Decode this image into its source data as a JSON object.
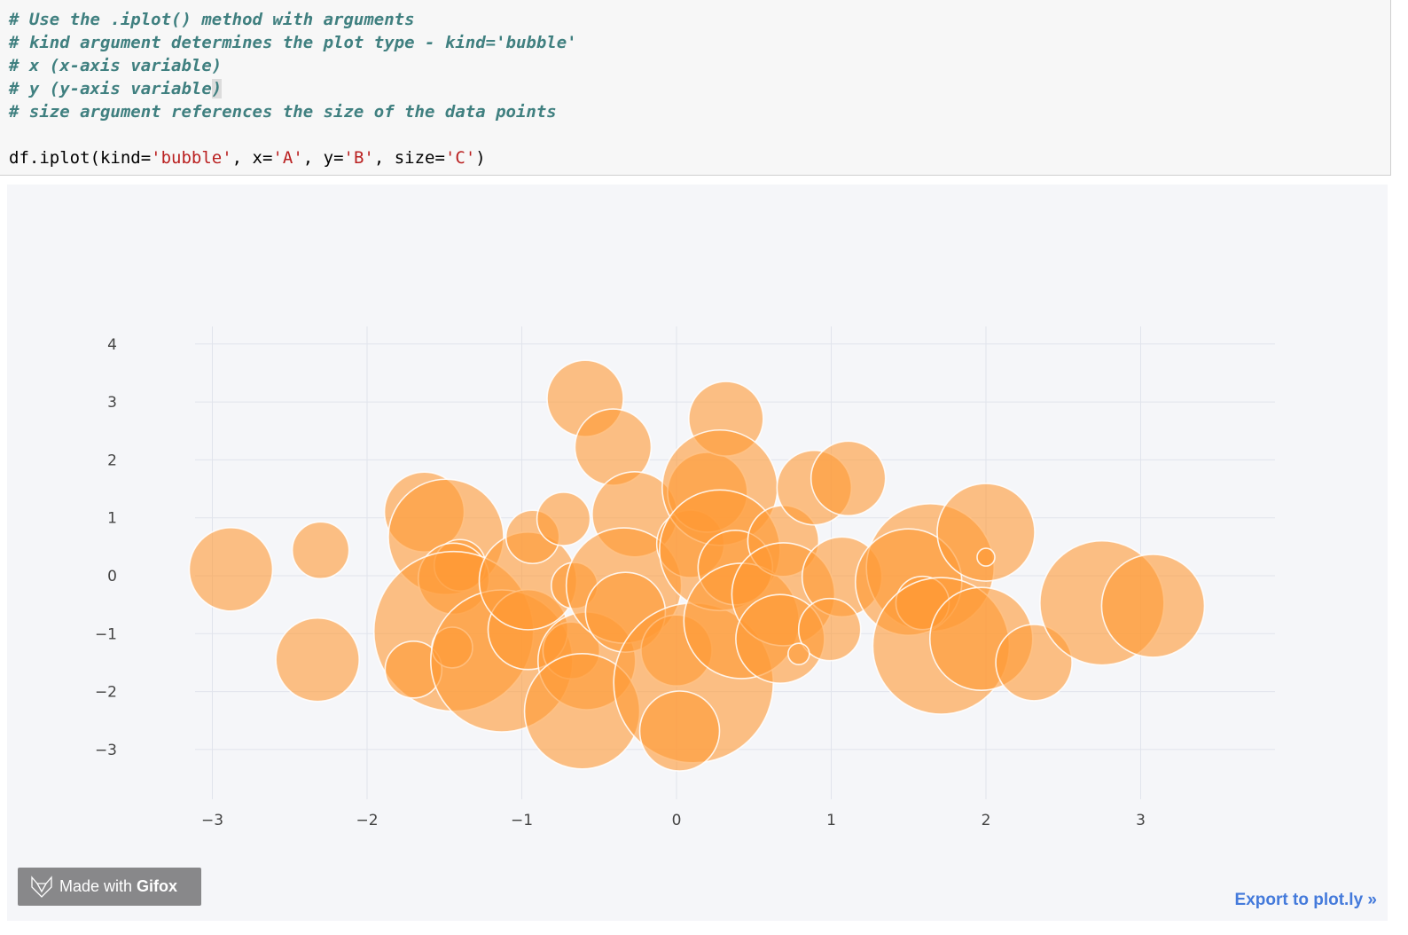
{
  "code_cell": {
    "comments": [
      "# Use the .iplot() method with arguments",
      "# kind argument determines the plot type - kind='bubble'",
      "# x (x-axis variable)",
      "# y (y-axis variable",
      "# size argument references the size of the data points"
    ],
    "matched_bracket": ")",
    "code_tokens": [
      "df.iplot(kind=",
      "'bubble'",
      ", x=",
      "'A'",
      ", y=",
      "'B'",
      ", size=",
      "'C'",
      ")"
    ]
  },
  "watermark": {
    "prefix": "Made with",
    "brand": "Gifox"
  },
  "export_link": "Export to plot.ly »",
  "chart_data": {
    "type": "scatter",
    "subtype": "bubble",
    "title": "",
    "xlabel": "",
    "ylabel": "",
    "xlim": [
      -3.1,
      3.87
    ],
    "ylim": [
      -3.8,
      4.3
    ],
    "xticks": [
      "−3",
      "−2",
      "−1",
      "0",
      "1",
      "2",
      "3"
    ],
    "xtick_values": [
      -3,
      -2,
      -1,
      0,
      1,
      2,
      3
    ],
    "yticks": [
      "4",
      "3",
      "2",
      "1",
      "0",
      "−1",
      "−2",
      "−3"
    ],
    "ytick_values": [
      4,
      3,
      2,
      1,
      0,
      -1,
      -2,
      -3
    ],
    "grid": true,
    "legend": "none",
    "marker_color": "#ff9933",
    "marker_opacity": 0.6,
    "marker_line_color": "#ffffff",
    "background": "#f5f6f9",
    "points": [
      {
        "x": -2.88,
        "y": 0.11,
        "size": 47
      },
      {
        "x": -2.3,
        "y": 0.44,
        "size": 32
      },
      {
        "x": -2.32,
        "y": -1.45,
        "size": 47
      },
      {
        "x": -1.63,
        "y": 1.1,
        "size": 45
      },
      {
        "x": -1.49,
        "y": 0.67,
        "size": 65
      },
      {
        "x": -1.4,
        "y": 0.18,
        "size": 29
      },
      {
        "x": -1.44,
        "y": -0.05,
        "size": 40
      },
      {
        "x": -1.44,
        "y": -0.96,
        "size": 90
      },
      {
        "x": -1.7,
        "y": -1.62,
        "size": 32
      },
      {
        "x": -1.45,
        "y": -1.24,
        "size": 23
      },
      {
        "x": -1.13,
        "y": -1.47,
        "size": 80
      },
      {
        "x": -0.96,
        "y": -0.93,
        "size": 45
      },
      {
        "x": -0.96,
        "y": -0.09,
        "size": 55
      },
      {
        "x": -0.93,
        "y": 0.67,
        "size": 30
      },
      {
        "x": -0.73,
        "y": 0.98,
        "size": 30
      },
      {
        "x": -0.66,
        "y": -0.17,
        "size": 26
      },
      {
        "x": -0.68,
        "y": -1.29,
        "size": 32
      },
      {
        "x": -0.58,
        "y": -1.47,
        "size": 55
      },
      {
        "x": -0.61,
        "y": -2.34,
        "size": 65
      },
      {
        "x": -0.59,
        "y": 3.06,
        "size": 43
      },
      {
        "x": -0.41,
        "y": 2.22,
        "size": 43
      },
      {
        "x": -0.27,
        "y": 1.06,
        "size": 48
      },
      {
        "x": -0.34,
        "y": -0.17,
        "size": 65
      },
      {
        "x": -0.33,
        "y": -0.63,
        "size": 45
      },
      {
        "x": 0.0,
        "y": -1.29,
        "size": 40
      },
      {
        "x": 0.11,
        "y": -1.85,
        "size": 90
      },
      {
        "x": 0.02,
        "y": -2.68,
        "size": 45
      },
      {
        "x": 0.09,
        "y": 0.55,
        "size": 38
      },
      {
        "x": 0.2,
        "y": 1.44,
        "size": 45
      },
      {
        "x": 0.32,
        "y": 2.71,
        "size": 42
      },
      {
        "x": 0.28,
        "y": 1.52,
        "size": 65
      },
      {
        "x": 0.28,
        "y": 0.44,
        "size": 68
      },
      {
        "x": 0.38,
        "y": 0.14,
        "size": 42
      },
      {
        "x": 0.42,
        "y": -0.78,
        "size": 65
      },
      {
        "x": 0.69,
        "y": 0.6,
        "size": 40
      },
      {
        "x": 0.69,
        "y": -0.32,
        "size": 58
      },
      {
        "x": 0.67,
        "y": -1.09,
        "size": 50
      },
      {
        "x": 0.89,
        "y": 1.52,
        "size": 42
      },
      {
        "x": 1.11,
        "y": 1.68,
        "size": 42
      },
      {
        "x": 1.07,
        "y": -0.02,
        "size": 45
      },
      {
        "x": 0.99,
        "y": -0.93,
        "size": 35
      },
      {
        "x": 0.79,
        "y": -1.35,
        "size": 12
      },
      {
        "x": 1.64,
        "y": 0.14,
        "size": 72
      },
      {
        "x": 1.5,
        "y": -0.11,
        "size": 60
      },
      {
        "x": 1.59,
        "y": -0.47,
        "size": 30
      },
      {
        "x": 1.71,
        "y": -1.21,
        "size": 77
      },
      {
        "x": 1.97,
        "y": -1.09,
        "size": 58
      },
      {
        "x": 2.0,
        "y": 0.75,
        "size": 55
      },
      {
        "x": 2.0,
        "y": 0.32,
        "size": 10
      },
      {
        "x": 2.31,
        "y": -1.5,
        "size": 43
      },
      {
        "x": 2.75,
        "y": -0.47,
        "size": 70
      },
      {
        "x": 3.08,
        "y": -0.52,
        "size": 58
      }
    ]
  }
}
